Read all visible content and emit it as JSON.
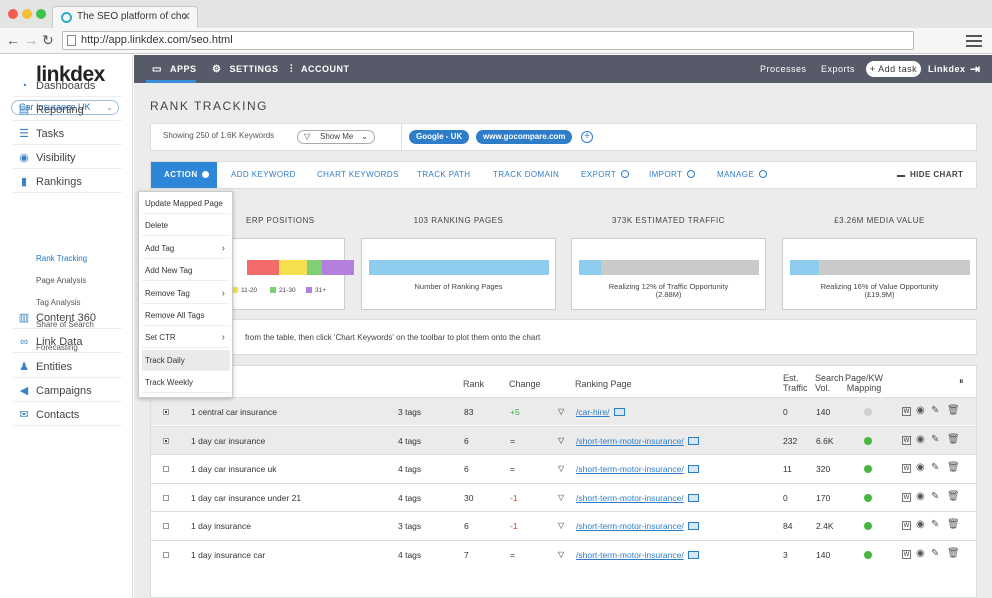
{
  "browser": {
    "tab_title": "The SEO platform of cho",
    "url": "http://app.linkdex.com/seo.html"
  },
  "sidebar": {
    "logo": "linkdex",
    "selector": "Car Insurance UK",
    "items": [
      {
        "label": "Dashboards",
        "icon": "dashboard-icon"
      },
      {
        "label": "Reporting",
        "icon": "document-icon"
      },
      {
        "label": "Tasks",
        "icon": "list-icon"
      },
      {
        "label": "Visibility",
        "icon": "eye-icon"
      },
      {
        "label": "Rankings",
        "icon": "bar-chart-icon"
      },
      {
        "label": "Content 360",
        "icon": "book-icon"
      },
      {
        "label": "Link Data",
        "icon": "link-icon"
      },
      {
        "label": "Entities",
        "icon": "entity-icon"
      },
      {
        "label": "Campaigns",
        "icon": "megaphone-icon"
      },
      {
        "label": "Contacts",
        "icon": "envelope-icon"
      }
    ],
    "subitems": [
      "Rank Tracking",
      "Page Analysis",
      "Tag Analysis",
      "Share of Search",
      "Forecasting"
    ]
  },
  "topnav": {
    "apps": "APPS",
    "settings": "SETTINGS",
    "account": "ACCOUNT",
    "processes": "Processes",
    "exports": "Exports",
    "add_task": "+ Add task",
    "user": "Linkdex"
  },
  "page": {
    "title": "RANK TRACKING",
    "showing": "Showing 250 of 1.6K Keywords",
    "show_me": "Show Me",
    "chips": [
      "Google - UK",
      "www.gocompare.com"
    ]
  },
  "toolbar": {
    "action": "ACTION",
    "items": [
      "ADD KEYWORD",
      "CHART KEYWORDS",
      "TRACK PATH",
      "TRACK DOMAIN",
      "EXPORT",
      "IMPORT",
      "MANAGE"
    ],
    "hide_chart": "HIDE CHART"
  },
  "summary": {
    "serp_title": "ERP POSITIONS",
    "serp_legend": [
      "11-20",
      "21-30",
      "31+"
    ],
    "pages_title": "103 RANKING PAGES",
    "pages_caption": "Number of Ranking Pages",
    "pages_fraction": 1.0,
    "traffic_title": "373K ESTIMATED TRAFFIC",
    "traffic_caption": "Realizing 12% of Traffic Opportunity",
    "traffic_sub": "(2.88M)",
    "traffic_fraction": 0.12,
    "value_title": "£3.26M MEDIA VALUE",
    "value_caption": "Realizing 16% of Value Opportunity",
    "value_sub": "(£19.9M)",
    "value_fraction": 0.16
  },
  "message": "from the table, then click 'Chart Keywords' on the toolbar to plot them onto the chart",
  "table": {
    "headers": {
      "rank": "Rank",
      "change": "Change",
      "page": "Ranking Page",
      "traffic": "Est.\nTraffic",
      "volume": "Search\nVol.",
      "mapping": "Page/KW\nMapping"
    },
    "rows": [
      {
        "keyword": "1 central car insurance",
        "tags": "3 tags",
        "rank": "83",
        "change": "+5",
        "change_type": "pos",
        "page": "/car-hire/",
        "traffic": "0",
        "volume": "140",
        "mapped": false,
        "checked": true,
        "selected": true
      },
      {
        "keyword": "1 day car insurance",
        "tags": "4 tags",
        "rank": "6",
        "change": "=",
        "change_type": "eq",
        "page": "/short-term-motor-insurance/",
        "traffic": "232",
        "volume": "6.6K",
        "mapped": true,
        "checked": true,
        "selected": true
      },
      {
        "keyword": "1 day car insurance uk",
        "tags": "4 tags",
        "rank": "6",
        "change": "=",
        "change_type": "eq",
        "page": "/short-term-motor-insurance/",
        "traffic": "11",
        "volume": "320",
        "mapped": true,
        "checked": false,
        "selected": false
      },
      {
        "keyword": "1 day car insurance under 21",
        "tags": "4 tags",
        "rank": "30",
        "change": "-1",
        "change_type": "neg",
        "page": "/short-term-motor-insurance/",
        "traffic": "0",
        "volume": "170",
        "mapped": true,
        "checked": false,
        "selected": false
      },
      {
        "keyword": "1 day insurance",
        "tags": "3 tags",
        "rank": "6",
        "change": "-1",
        "change_type": "neg",
        "page": "/short-term-motor-insurance/",
        "traffic": "84",
        "volume": "2.4K",
        "mapped": true,
        "checked": false,
        "selected": false
      },
      {
        "keyword": "1 day insurance car",
        "tags": "4 tags",
        "rank": "7",
        "change": "=",
        "change_type": "eq",
        "page": "/short-term-motor-insurance/",
        "traffic": "3",
        "volume": "140",
        "mapped": true,
        "checked": false,
        "selected": false
      }
    ]
  },
  "dropdown": {
    "items": [
      {
        "label": "Update Mapped Page",
        "submenu": false
      },
      {
        "label": "Delete",
        "submenu": false
      },
      {
        "label": "Add Tag",
        "submenu": true
      },
      {
        "label": "Add New Tag",
        "submenu": false
      },
      {
        "label": "Remove Tag",
        "submenu": true
      },
      {
        "label": "Remove All Tags",
        "submenu": false
      },
      {
        "label": "Set CTR",
        "submenu": true
      },
      {
        "label": "Track Daily",
        "submenu": false,
        "highlighted": true
      },
      {
        "label": "Track Weekly",
        "submenu": false
      }
    ]
  },
  "colors": {
    "accent": "#2e86d6",
    "nav": "#575a69",
    "green": "#47b83f",
    "red": "#d9381e"
  }
}
